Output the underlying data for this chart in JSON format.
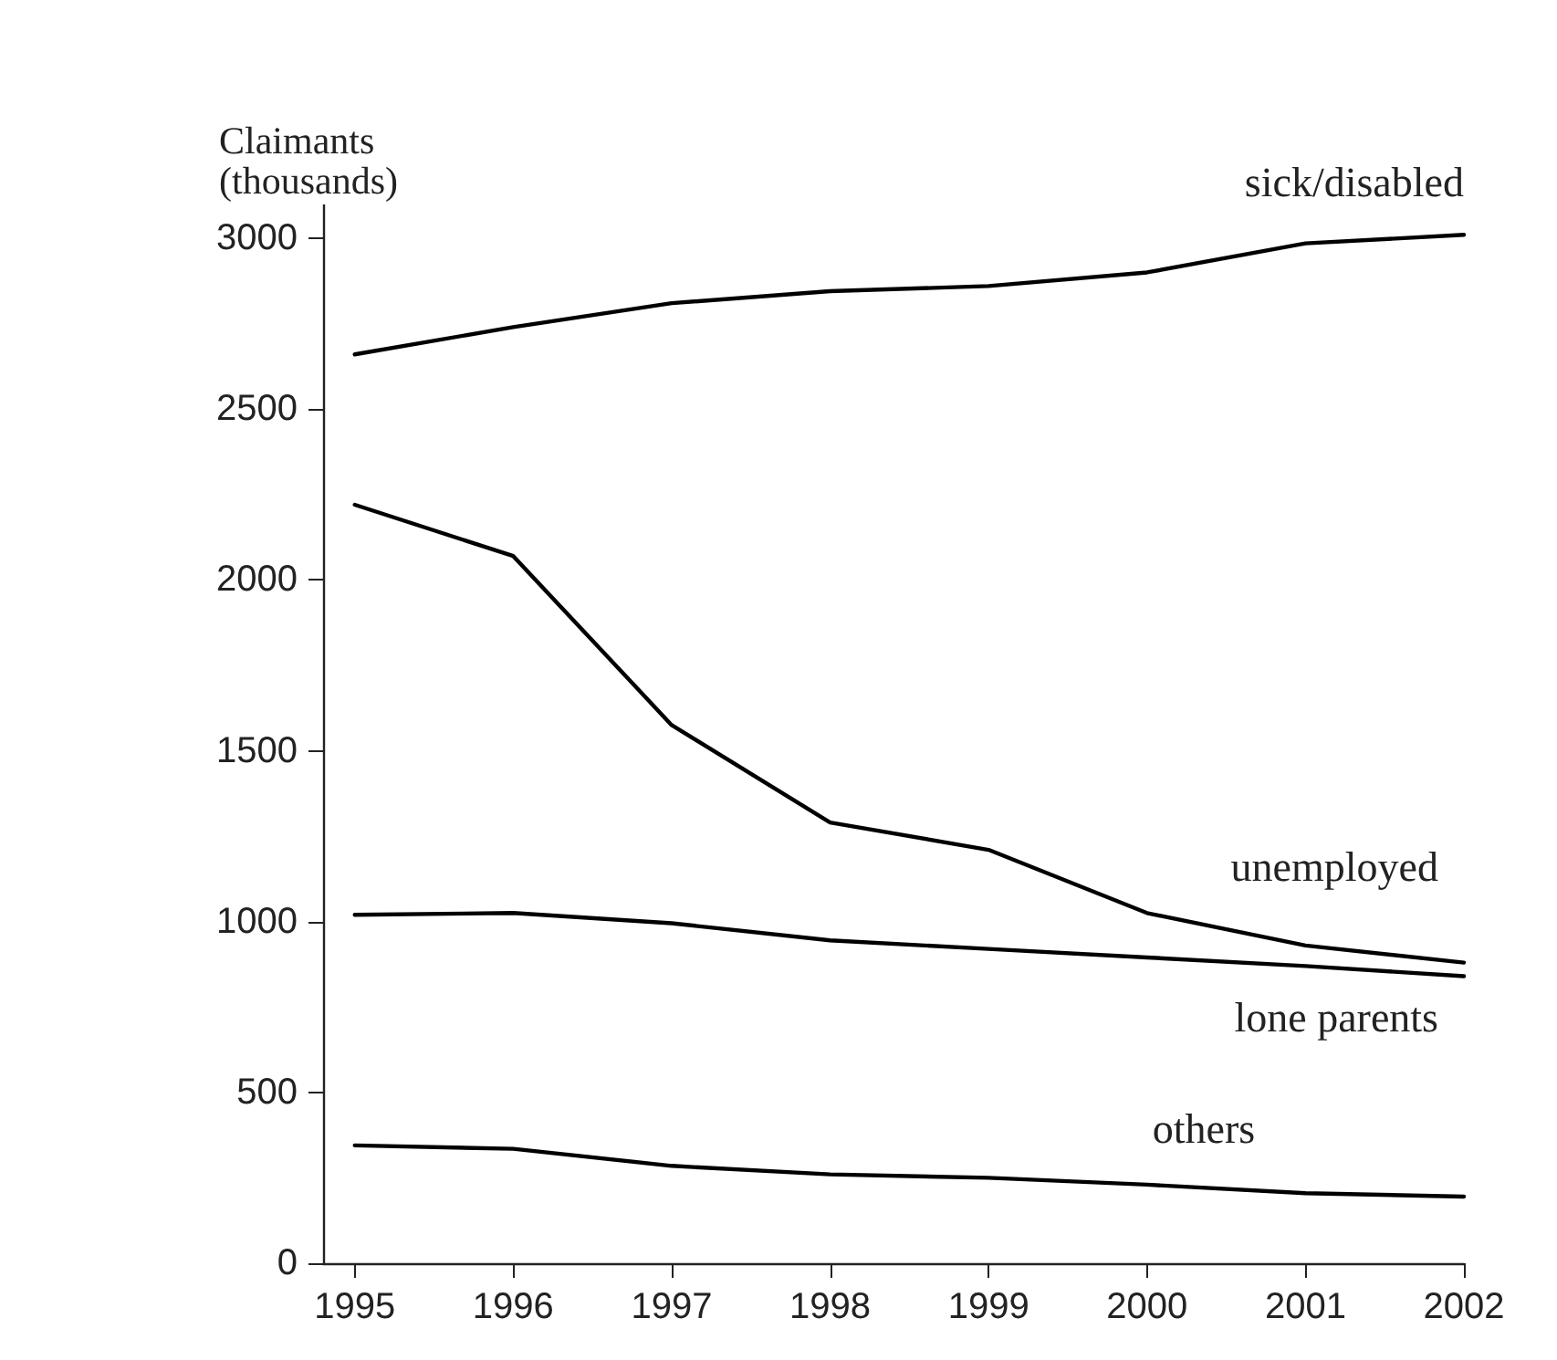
{
  "chart_data": {
    "type": "line",
    "ylabel": "Claimants\n(thousands)",
    "x": [
      1995,
      1996,
      1997,
      1998,
      1999,
      2000,
      2001,
      2002
    ],
    "xlim": [
      1994.8,
      2002
    ],
    "xticks": [
      1995,
      1996,
      1997,
      1998,
      1999,
      2000,
      2001,
      2002
    ],
    "ylim": [
      0,
      3350
    ],
    "yticks": [
      0,
      500,
      1000,
      1500,
      2000,
      2500,
      3000
    ],
    "grid": false,
    "legend": false,
    "marker": "none",
    "line_style": "solid",
    "series": [
      {
        "name": "sick/disabled",
        "color": "#000000",
        "values": [
          2660,
          2740,
          2810,
          2845,
          2860,
          2900,
          2985,
          3010
        ]
      },
      {
        "name": "unemployed",
        "color": "#000000",
        "values": [
          2220,
          2070,
          1575,
          1290,
          1210,
          1025,
          930,
          880
        ]
      },
      {
        "name": "lone parents",
        "color": "#000000",
        "values": [
          1020,
          1025,
          995,
          945,
          920,
          895,
          870,
          840
        ]
      },
      {
        "name": "others",
        "color": "#000000",
        "values": [
          345,
          335,
          285,
          260,
          250,
          230,
          205,
          195
        ]
      }
    ]
  }
}
